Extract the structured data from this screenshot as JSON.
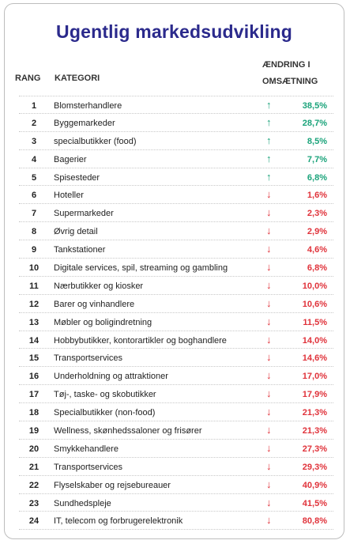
{
  "chart_data": {
    "type": "table",
    "title": "Ugentlig markedsudvikling",
    "columns": [
      "RANG",
      "KATEGORI",
      "ÆNDRING I",
      "OMSÆTNING"
    ],
    "rows": [
      {
        "rank": "1",
        "category": "Blomsterhandlere",
        "direction": "up",
        "change": "38,5%"
      },
      {
        "rank": "2",
        "category": "Byggemarkeder",
        "direction": "up",
        "change": "28,7%"
      },
      {
        "rank": "3",
        "category": "specialbutikker (food)",
        "direction": "up",
        "change": "8,5%"
      },
      {
        "rank": "4",
        "category": "Bagerier",
        "direction": "up",
        "change": "7,7%"
      },
      {
        "rank": "5",
        "category": "Spisesteder",
        "direction": "up",
        "change": "6,8%"
      },
      {
        "rank": "6",
        "category": "Hoteller",
        "direction": "down",
        "change": "1,6%"
      },
      {
        "rank": "7",
        "category": "Supermarkeder",
        "direction": "down",
        "change": "2,3%"
      },
      {
        "rank": "8",
        "category": "Øvrig detail",
        "direction": "down",
        "change": "2,9%"
      },
      {
        "rank": "9",
        "category": "Tankstationer",
        "direction": "down",
        "change": "4,6%"
      },
      {
        "rank": "10",
        "category": "Digitale services, spil, streaming og gambling",
        "direction": "down",
        "change": "6,8%"
      },
      {
        "rank": "11",
        "category": "Nærbutikker og kiosker",
        "direction": "down",
        "change": "10,0%"
      },
      {
        "rank": "12",
        "category": "Barer og vinhandlere",
        "direction": "down",
        "change": "10,6%"
      },
      {
        "rank": "13",
        "category": "Møbler og boligindretning",
        "direction": "down",
        "change": "11,5%"
      },
      {
        "rank": "14",
        "category": "Hobbybutikker, kontorartikler og boghandlere",
        "direction": "down",
        "change": "14,0%"
      },
      {
        "rank": "15",
        "category": "Transportservices",
        "direction": "down",
        "change": "14,6%"
      },
      {
        "rank": "16",
        "category": "Underholdning og attraktioner",
        "direction": "down",
        "change": "17,0%"
      },
      {
        "rank": "17",
        "category": "Tøj-, taske- og skobutikker",
        "direction": "down",
        "change": "17,9%"
      },
      {
        "rank": "18",
        "category": "Specialbutikker (non-food)",
        "direction": "down",
        "change": "21,3%"
      },
      {
        "rank": "19",
        "category": "Wellness, skønhedssaloner og frisører",
        "direction": "down",
        "change": "21,3%"
      },
      {
        "rank": "20",
        "category": "Smykkehandlere",
        "direction": "down",
        "change": "27,3%"
      },
      {
        "rank": "21",
        "category": "Transportservices",
        "direction": "down",
        "change": "29,3%"
      },
      {
        "rank": "22",
        "category": "Flyselskaber og rejsebureauer",
        "direction": "down",
        "change": "40,9%"
      },
      {
        "rank": "23",
        "category": "Sundhedspleje",
        "direction": "down",
        "change": "41,5%"
      },
      {
        "rank": "24",
        "category": "IT, telecom og forbrugerelektronik",
        "direction": "down",
        "change": "80,8%"
      }
    ],
    "colors": {
      "title": "#2b2a8c",
      "up": "#1aa37a",
      "down": "#e0323a"
    },
    "icons": {
      "up": "arrow-up-icon",
      "down": "arrow-down-icon"
    }
  }
}
